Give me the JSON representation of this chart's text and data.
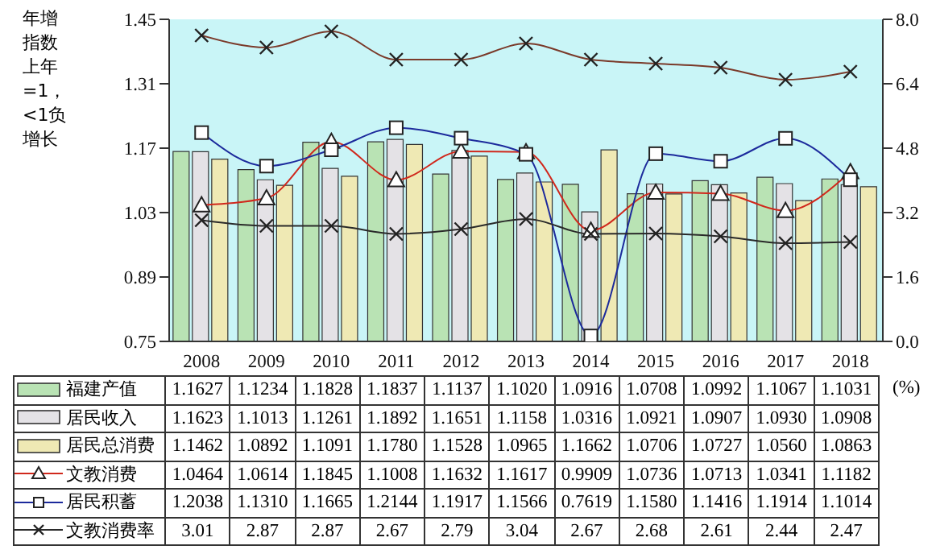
{
  "chart_data": {
    "type": "bar",
    "ylabel": "年增指数上年=1，<1负增长",
    "y2label": "(%)",
    "categories": [
      "2008",
      "2009",
      "2010",
      "2011",
      "2012",
      "2013",
      "2014",
      "2015",
      "2016",
      "2017",
      "2018"
    ],
    "ylim": [
      0.75,
      1.45
    ],
    "yticks": [
      0.75,
      0.89,
      1.03,
      1.17,
      1.31,
      1.45
    ],
    "y2lim": [
      0,
      8
    ],
    "y2ticks": [
      {
        "value": 0,
        "label": "0.0"
      },
      1.6,
      3.2,
      4.8,
      6.4,
      {
        "value": 8,
        "label": "8.0"
      }
    ],
    "grid": false,
    "legend": "bottom",
    "series": [
      {
        "name": "福建产值",
        "color": "#b9e3b4",
        "values": [
          1.1627,
          1.1234,
          1.1828,
          1.1837,
          1.1137,
          1.102,
          1.0916,
          1.0708,
          1.0992,
          1.1067,
          1.1031
        ],
        "value_labels": [
          "1.1627",
          "1.1234",
          "1.1828",
          "1.1837",
          "1.1137",
          "1.1020",
          "1.0916",
          "1.0708",
          "1.0992",
          "1.1067",
          "1.1031"
        ]
      },
      {
        "name": "居民收入",
        "color": "#e4e2e6",
        "values": [
          1.1623,
          1.1013,
          1.1261,
          1.1892,
          1.1651,
          1.1158,
          1.0316,
          1.0921,
          1.0907,
          1.093,
          1.0908
        ],
        "value_labels": [
          "1.1623",
          "1.1013",
          "1.1261",
          "1.1892",
          "1.1651",
          "1.1158",
          "1.0316",
          "1.0921",
          "1.0907",
          "1.0930",
          "1.0908"
        ]
      },
      {
        "name": "居民总消费",
        "color": "#efe9b4",
        "values": [
          1.1462,
          1.0892,
          1.1091,
          1.178,
          1.1528,
          1.0965,
          1.1662,
          1.0706,
          1.0727,
          1.056,
          1.0863
        ],
        "value_labels": [
          "1.1462",
          "1.0892",
          "1.1091",
          "1.1780",
          "1.1528",
          "1.0965",
          "1.1662",
          "1.0706",
          "1.0727",
          "1.0560",
          "1.0863"
        ]
      },
      {
        "name": "文教消费",
        "type": "line",
        "color": "#d0281c",
        "marker": "triangle",
        "values": [
          1.0464,
          1.0614,
          1.1845,
          1.1008,
          1.1632,
          1.1617,
          0.9909,
          1.0736,
          1.0713,
          1.0341,
          1.1182
        ],
        "value_labels": [
          "1.0464",
          "1.0614",
          "1.1845",
          "1.1008",
          "1.1632",
          "1.1617",
          "0.9909",
          "1.0736",
          "1.0713",
          "1.0341",
          "1.1182"
        ]
      },
      {
        "name": "居民积蓄",
        "type": "line",
        "color": "#1c2a9c",
        "marker": "square",
        "values": [
          1.2038,
          1.131,
          1.1665,
          1.2144,
          1.1917,
          1.1566,
          0.7619,
          1.158,
          1.1416,
          1.1914,
          1.1014
        ],
        "value_labels": [
          "1.2038",
          "1.1310",
          "1.1665",
          "1.2144",
          "1.1917",
          "1.1566",
          "0.7619",
          "1.1580",
          "1.1416",
          "1.1914",
          "1.1014"
        ]
      },
      {
        "name": "文教消费率",
        "type": "line",
        "axis": "y2",
        "color": "#2a2a2a",
        "marker": "cross",
        "values": [
          3.01,
          2.87,
          2.87,
          2.67,
          2.79,
          3.04,
          2.67,
          2.68,
          2.61,
          2.44,
          2.47
        ],
        "value_labels": [
          "3.01",
          "2.87",
          "2.87",
          "2.67",
          "2.79",
          "3.04",
          "2.67",
          "2.68",
          "2.61",
          "2.44",
          "2.47"
        ]
      },
      {
        "type": "line",
        "axis": "y2",
        "color": "#7a3a2a",
        "marker": "cross",
        "values": [
          7.6,
          7.3,
          7.7,
          7.0,
          7.0,
          7.4,
          7.0,
          6.9,
          6.8,
          6.5,
          6.7
        ]
      }
    ]
  }
}
